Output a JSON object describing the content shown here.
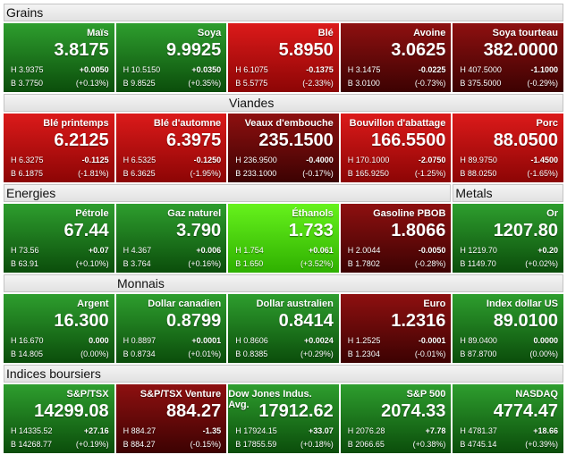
{
  "sections": [
    {
      "headers": [
        "Grains"
      ],
      "tiles": [
        {
          "name": "Maïs",
          "value": "3.8175",
          "high": "H 3.9375",
          "change": "+0.0050",
          "low": "B 3.7750",
          "pct": "(+0.13%)",
          "tone": "green"
        },
        {
          "name": "Soya",
          "value": "9.9925",
          "high": "H 10.5150",
          "change": "+0.0350",
          "low": "B 9.8525",
          "pct": "(+0.35%)",
          "tone": "green"
        },
        {
          "name": "Blé",
          "value": "5.8950",
          "high": "H 6.1075",
          "change": "-0.1375",
          "low": "B 5.5775",
          "pct": "(-2.33%)",
          "tone": "red"
        },
        {
          "name": "Avoine",
          "value": "3.0625",
          "high": "H 3.1475",
          "change": "-0.0225",
          "low": "B 3.0100",
          "pct": "(-0.73%)",
          "tone": "darkred"
        },
        {
          "name": "Soya tourteau",
          "value": "382.0000",
          "high": "H 407.5000",
          "change": "-1.1000",
          "low": "B 375.5000",
          "pct": "(-0.29%)",
          "tone": "darkred"
        }
      ]
    },
    {
      "headers": [
        "Viandes"
      ],
      "tiles": [
        {
          "name": "Blé printemps",
          "value": "6.2125",
          "high": "H 6.3275",
          "change": "-0.1125",
          "low": "B 6.1875",
          "pct": "(-1.81%)",
          "tone": "red"
        },
        {
          "name": "Blé d'automne",
          "value": "6.3975",
          "high": "H 6.5325",
          "change": "-0.1250",
          "low": "B 6.3625",
          "pct": "(-1.95%)",
          "tone": "red"
        },
        {
          "name": "Veaux d'embouche",
          "value": "235.1500",
          "high": "H 236.9500",
          "change": "-0.4000",
          "low": "B 233.1000",
          "pct": "(-0.17%)",
          "tone": "darkred"
        },
        {
          "name": "Bouvillon d'abattage",
          "value": "166.5500",
          "high": "H 170.1000",
          "change": "-2.0750",
          "low": "B 165.9250",
          "pct": "(-1.25%)",
          "tone": "red"
        },
        {
          "name": "Porc",
          "value": "88.0500",
          "high": "H 89.9750",
          "change": "-1.4500",
          "low": "B 88.0250",
          "pct": "(-1.65%)",
          "tone": "red"
        }
      ]
    },
    {
      "headers": [
        "Energies",
        "Metals"
      ],
      "tiles": [
        {
          "name": "Pétrole",
          "value": "67.44",
          "high": "H 73.56",
          "change": "+0.07",
          "low": "B 63.91",
          "pct": "(+0.10%)",
          "tone": "green"
        },
        {
          "name": "Gaz naturel",
          "value": "3.790",
          "high": "H 4.367",
          "change": "+0.006",
          "low": "B 3.764",
          "pct": "(+0.16%)",
          "tone": "green"
        },
        {
          "name": "Éthanols",
          "value": "1.733",
          "high": "H 1.754",
          "change": "+0.061",
          "low": "B 1.650",
          "pct": "(+3.52%)",
          "tone": "lime"
        },
        {
          "name": "Gasoline PBOB",
          "value": "1.8066",
          "high": "H 2.0044",
          "change": "-0.0050",
          "low": "B 1.7802",
          "pct": "(-0.28%)",
          "tone": "darkred"
        },
        {
          "name": "Or",
          "value": "1207.80",
          "high": "H 1219.70",
          "change": "+0.20",
          "low": "B 1149.70",
          "pct": "(+0.02%)",
          "tone": "green"
        }
      ]
    },
    {
      "headers": [
        "Monnais"
      ],
      "tiles": [
        {
          "name": "Argent",
          "value": "16.300",
          "high": "H 16.670",
          "change": "0.000",
          "low": "B 14.805",
          "pct": "(0.00%)",
          "tone": "green"
        },
        {
          "name": "Dollar canadien",
          "value": "0.8799",
          "high": "H 0.8897",
          "change": "+0.0001",
          "low": "B 0.8734",
          "pct": "(+0.01%)",
          "tone": "green"
        },
        {
          "name": "Dollar australien",
          "value": "0.8414",
          "high": "H 0.8606",
          "change": "+0.0024",
          "low": "B 0.8385",
          "pct": "(+0.29%)",
          "tone": "green"
        },
        {
          "name": "Euro",
          "value": "1.2316",
          "high": "H 1.2525",
          "change": "-0.0001",
          "low": "B 1.2304",
          "pct": "(-0.01%)",
          "tone": "darkred"
        },
        {
          "name": "Index dollar US",
          "value": "89.0100",
          "high": "H 89.0400",
          "change": "0.0000",
          "low": "B 87.8700",
          "pct": "(0.00%)",
          "tone": "green"
        }
      ]
    },
    {
      "headers": [
        "Indices boursiers"
      ],
      "tiles": [
        {
          "name": "S&P/TSX",
          "value": "14299.08",
          "high": "H 14335.52",
          "change": "+27.16",
          "low": "B 14268.77",
          "pct": "(+0.19%)",
          "tone": "green"
        },
        {
          "name": "S&P/TSX Venture",
          "value": "884.27",
          "high": "H 884.27",
          "change": "-1.35",
          "low": "B 884.27",
          "pct": "(-0.15%)",
          "tone": "darkred"
        },
        {
          "name": "Dow Jones Indus. Avg.",
          "value": "17912.62",
          "high": "H 17924.15",
          "change": "+33.07",
          "low": "B 17855.59",
          "pct": "(+0.18%)",
          "tone": "green"
        },
        {
          "name": "S&P 500",
          "value": "2074.33",
          "high": "H 2076.28",
          "change": "+7.78",
          "low": "B 2066.65",
          "pct": "(+0.38%)",
          "tone": "green"
        },
        {
          "name": "NASDAQ",
          "value": "4774.47",
          "high": "H 4781.37",
          "change": "+18.66",
          "low": "B 4745.14",
          "pct": "(+0.39%)",
          "tone": "green"
        }
      ]
    }
  ]
}
